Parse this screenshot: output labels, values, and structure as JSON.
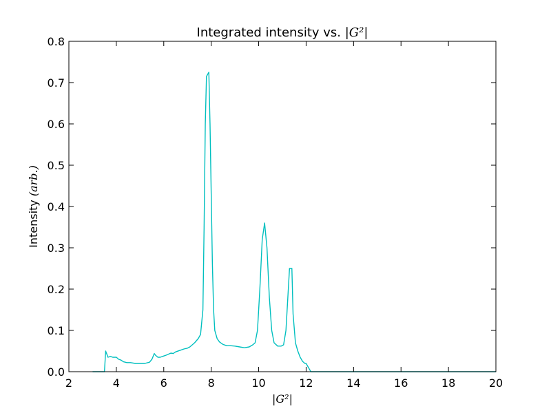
{
  "chart_data": {
    "type": "line",
    "title_prefix": "Integrated intensity vs. ",
    "title_math": "|G²|",
    "xlabel": "|G²|",
    "ylabel_prefix": "Intensity ",
    "ylabel_math": "(arb.)",
    "xlim": [
      2,
      20
    ],
    "ylim": [
      0,
      0.8
    ],
    "x_ticks": [
      2,
      4,
      6,
      8,
      10,
      12,
      14,
      16,
      18,
      20
    ],
    "y_ticks": [
      0.0,
      0.1,
      0.2,
      0.3,
      0.4,
      0.5,
      0.6,
      0.7,
      0.8
    ],
    "x_tick_labels": [
      "2",
      "4",
      "6",
      "8",
      "10",
      "12",
      "14",
      "16",
      "18",
      "20"
    ],
    "y_tick_labels": [
      "0.0",
      "0.1",
      "0.2",
      "0.3",
      "0.4",
      "0.5",
      "0.6",
      "0.7",
      "0.8"
    ],
    "grid": false,
    "series_color": "#00bfbf",
    "series": [
      {
        "x": [
          3.0,
          3.5,
          3.55,
          3.65,
          3.75,
          3.85,
          4.0,
          4.1,
          4.2,
          4.3,
          4.45,
          4.6,
          4.8,
          5.0,
          5.2,
          5.4,
          5.5,
          5.6,
          5.65,
          5.75,
          5.85,
          6.0,
          6.1,
          6.3,
          6.4,
          6.5,
          6.7,
          6.85,
          7.0,
          7.1,
          7.2,
          7.3,
          7.45,
          7.55,
          7.65,
          7.7,
          7.75,
          7.8,
          7.85,
          7.9,
          7.95,
          8.0,
          8.05,
          8.1,
          8.15,
          8.25,
          8.35,
          8.5,
          8.65,
          8.8,
          9.0,
          9.2,
          9.4,
          9.6,
          9.75,
          9.85,
          9.95,
          10.05,
          10.15,
          10.25,
          10.3,
          10.35,
          10.45,
          10.55,
          10.65,
          10.8,
          10.95,
          11.05,
          11.15,
          11.25,
          11.3,
          11.35,
          11.4,
          11.45,
          11.55,
          11.65,
          11.75,
          11.85,
          11.95,
          12.0,
          12.2,
          12.3,
          14.0,
          16.0,
          18.0,
          20.0
        ],
        "y": [
          0.0,
          0.0,
          0.05,
          0.035,
          0.037,
          0.035,
          0.035,
          0.03,
          0.028,
          0.024,
          0.022,
          0.022,
          0.02,
          0.02,
          0.02,
          0.023,
          0.03,
          0.044,
          0.04,
          0.035,
          0.035,
          0.038,
          0.04,
          0.045,
          0.044,
          0.048,
          0.052,
          0.055,
          0.057,
          0.06,
          0.065,
          0.07,
          0.08,
          0.09,
          0.15,
          0.35,
          0.6,
          0.715,
          0.72,
          0.725,
          0.6,
          0.43,
          0.26,
          0.15,
          0.1,
          0.08,
          0.072,
          0.066,
          0.063,
          0.063,
          0.062,
          0.06,
          0.058,
          0.06,
          0.065,
          0.07,
          0.1,
          0.2,
          0.32,
          0.36,
          0.33,
          0.3,
          0.18,
          0.1,
          0.07,
          0.062,
          0.062,
          0.065,
          0.1,
          0.2,
          0.25,
          0.25,
          0.25,
          0.14,
          0.07,
          0.05,
          0.035,
          0.025,
          0.02,
          0.02,
          0.0,
          0.0,
          0.0,
          0.0,
          0.0,
          0.0
        ]
      }
    ]
  }
}
